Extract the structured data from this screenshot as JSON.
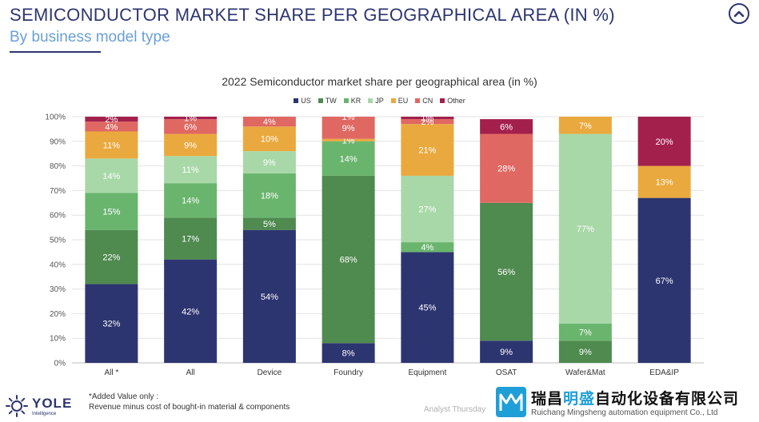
{
  "header": {
    "title": "SEMICONDUCTOR MARKET SHARE PER GEOGRAPHICAL AREA (IN %)",
    "subtitle": "By business model type"
  },
  "chart_data": {
    "type": "bar",
    "stacked": true,
    "title": "2022 Semiconductor market share per geographical area (in %)",
    "categories": [
      "All *",
      "All",
      "Device",
      "Foundry",
      "Equipment",
      "OSAT",
      "Wafer&Mat",
      "EDA&IP"
    ],
    "ylim": [
      0,
      100
    ],
    "y_ticks": [
      "0%",
      "10%",
      "20%",
      "30%",
      "40%",
      "50%",
      "60%",
      "70%",
      "80%",
      "90%",
      "100%"
    ],
    "legend_position": "top-center",
    "grid": true,
    "series": [
      {
        "name": "US",
        "color": "#2d3570",
        "label_color": "#ffffff",
        "values": [
          32,
          42,
          54,
          8,
          45,
          9,
          0,
          67
        ]
      },
      {
        "name": "TW",
        "color": "#4f8a4f",
        "label_color": "#ffffff",
        "values": [
          22,
          17,
          5,
          68,
          0,
          56,
          9,
          0
        ]
      },
      {
        "name": "KR",
        "color": "#6ab56e",
        "label_color": "#ffffff",
        "values": [
          15,
          14,
          18,
          14,
          4,
          0,
          7,
          0
        ]
      },
      {
        "name": "JP",
        "color": "#a8d8a8",
        "label_color": "#ffffff",
        "values": [
          14,
          11,
          9,
          0,
          27,
          0,
          77,
          0
        ]
      },
      {
        "name": "EU",
        "color": "#eaa93e",
        "label_color": "#ffffff",
        "values": [
          11,
          9,
          10,
          1,
          21,
          0,
          7,
          13
        ]
      },
      {
        "name": "CN",
        "color": "#e06862",
        "label_color": "#ffffff",
        "values": [
          4,
          6,
          4,
          9,
          2,
          28,
          0,
          0
        ]
      },
      {
        "name": "Other",
        "color": "#a3204d",
        "label_color": "#ffffff",
        "values": [
          2,
          1,
          0,
          1,
          1,
          6,
          0,
          20
        ]
      }
    ]
  },
  "footnote": {
    "line1": "*Added Value only :",
    "line2": "Revenue minus cost of bought-in material & components"
  },
  "logo": {
    "word": "YOLE",
    "sub": "Intelligence"
  },
  "analyst": "Analyst Thursday",
  "watermark": {
    "cn_prefix": "瑞昌",
    "cn_accent": "明盛",
    "cn_suffix": "自动化设备有限公司",
    "en": "Ruichang Mingsheng automation equipment Co., Ltd"
  }
}
